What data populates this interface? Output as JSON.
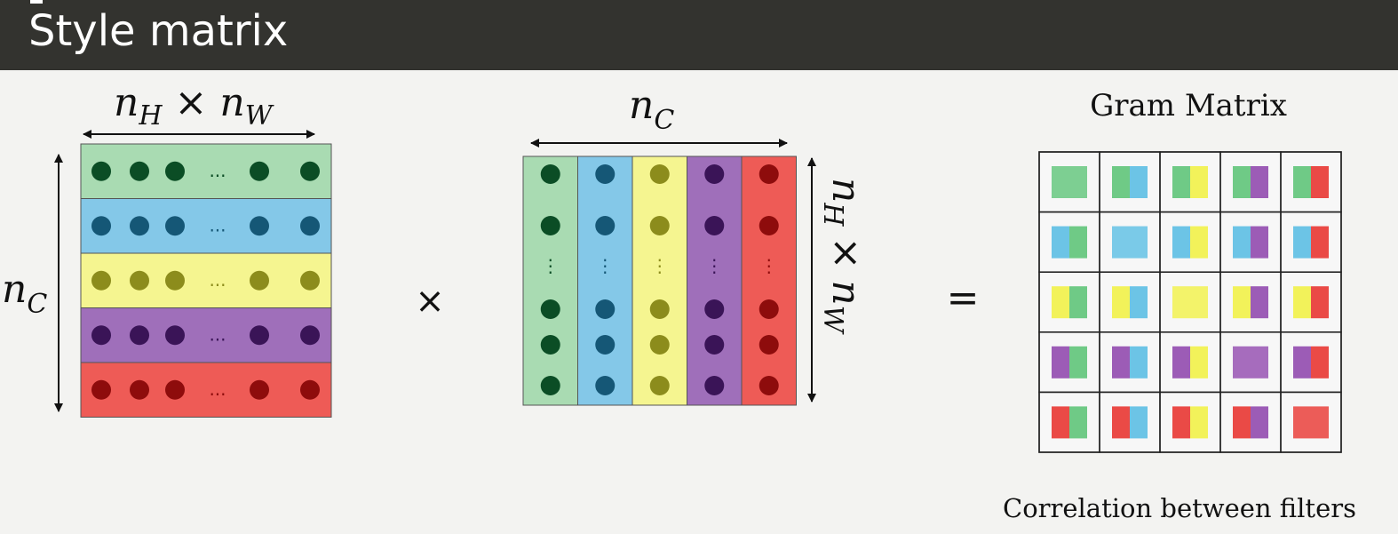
{
  "slide": {
    "title": "Style matrix"
  },
  "left_matrix": {
    "width_label_var": "n",
    "width_label_sub1": "H",
    "width_label_times": "×",
    "width_label_var2": "n",
    "width_label_sub2": "W",
    "height_label_var": "n",
    "height_label_sub": "C",
    "row_ellipsis": "...",
    "rows": [
      {
        "name": "green",
        "fill": "#a9dbb2",
        "dot": "#0b4d25"
      },
      {
        "name": "blue",
        "fill": "#84c8e8",
        "dot": "#155776"
      },
      {
        "name": "yellow",
        "fill": "#f5f590",
        "dot": "#8c8c1c"
      },
      {
        "name": "purple",
        "fill": "#9f6fba",
        "dot": "#3a1457"
      },
      {
        "name": "red",
        "fill": "#ee5b56",
        "dot": "#8e0c0c"
      }
    ]
  },
  "multiply_symbol": "×",
  "right_matrix": {
    "width_label_var": "n",
    "width_label_sub": "C",
    "height_label_var": "n",
    "height_label_sub1": "H",
    "height_label_times": "×",
    "height_label_var2": "n",
    "height_label_sub2": "W",
    "col_ellipsis": "⋮",
    "cols": [
      {
        "name": "green",
        "fill": "#a9dbb2",
        "dot": "#0b4d25"
      },
      {
        "name": "blue",
        "fill": "#84c8e8",
        "dot": "#155776"
      },
      {
        "name": "yellow",
        "fill": "#f5f590",
        "dot": "#8c8c1c"
      },
      {
        "name": "purple",
        "fill": "#9f6fba",
        "dot": "#3a1457"
      },
      {
        "name": "red",
        "fill": "#ee5b56",
        "dot": "#8e0c0c"
      }
    ]
  },
  "equals_symbol": "=",
  "gram": {
    "title": "Gram Matrix",
    "caption": "Correlation between filters",
    "size": 5,
    "colors": [
      "#6fca86",
      "#6cc4e6",
      "#f2f25a",
      "#9c5cb6",
      "#ea4a46"
    ]
  }
}
